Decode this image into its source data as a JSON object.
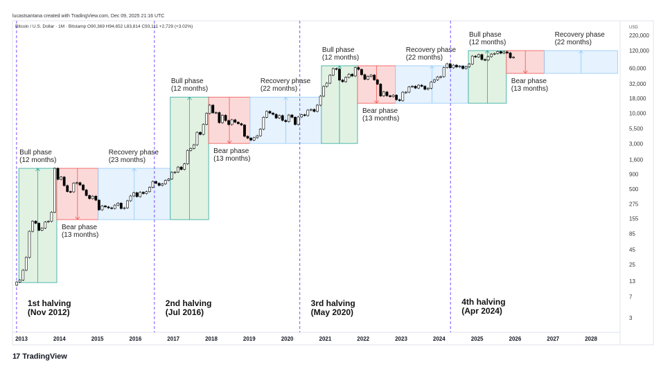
{
  "header": {
    "credit": "lucastsantana created with TradingView.com, Dec 09, 2025 21:16 UTC",
    "symbol_legend": "Bitcoin / U.S. Dollar · 1M · Bitstamp  O90,369  H94,652  L83,814  C93,111  +2,729 (+3.02%)"
  },
  "footer": {
    "logo_text": "TradingView"
  },
  "chart_data": {
    "type": "candlestick",
    "title": "",
    "y_scale": "log",
    "y_unit": "USD",
    "ylim": [
      2,
      300000
    ],
    "xlim": [
      2012.75,
      2028.8
    ],
    "y_ticks": [
      "220,000",
      "120,000",
      "60,000",
      "32,000",
      "18,000",
      "10,000",
      "5,500",
      "3,000",
      "1,600",
      "900",
      "500",
      "275",
      "155",
      "85",
      "45",
      "25",
      "13",
      "7",
      "3"
    ],
    "x_ticks": [
      "2013",
      "2014",
      "2015",
      "2016",
      "2017",
      "2018",
      "2019",
      "2020",
      "2021",
      "2022",
      "2023",
      "2024",
      "2025",
      "2026",
      "2027",
      "2028"
    ],
    "grid": false,
    "series_start_month": "2012-11",
    "first_open": 11,
    "monthly_closes": [
      12.5,
      13.5,
      20,
      33,
      93,
      139,
      128,
      97,
      106,
      135,
      138,
      198,
      1130,
      730,
      800,
      570,
      450,
      445,
      630,
      640,
      585,
      480,
      385,
      340,
      375,
      320,
      218,
      255,
      245,
      236,
      230,
      263,
      284,
      230,
      236,
      312,
      378,
      430,
      368,
      437,
      416,
      448,
      531,
      670,
      624,
      574,
      608,
      700,
      740,
      963,
      970,
      1190,
      1080,
      1350,
      2300,
      2480,
      2870,
      4700,
      4340,
      6450,
      9950,
      13800,
      10200,
      10300,
      6900,
      9250,
      7500,
      6400,
      7730,
      7030,
      6630,
      6300,
      4020,
      3740,
      3460,
      3800,
      4100,
      5320,
      8550,
      10800,
      10100,
      9600,
      8300,
      9150,
      7550,
      7200,
      9350,
      8550,
      6410,
      8650,
      9450,
      9140,
      11350,
      11650,
      10780,
      13800,
      19700,
      28990,
      33100,
      45200,
      58800,
      57700,
      37300,
      35000,
      41500,
      47100,
      43800,
      61300,
      57000,
      46200,
      38500,
      43200,
      45500,
      37700,
      31800,
      19900,
      23300,
      20050,
      19400,
      20500,
      17150,
      16550,
      23100,
      23150,
      28450,
      29250,
      27200,
      30450,
      29200,
      25900,
      26960,
      34650,
      37700,
      42300,
      42600,
      61200,
      71300,
      60700,
      67500,
      62700,
      64600,
      58900,
      63300,
      70200,
      96400,
      93400,
      102400,
      84300,
      82500,
      94200,
      104600,
      107100,
      115700,
      108200,
      114000,
      109500,
      90400,
      93111
    ],
    "colors": {
      "up": "#ffffff",
      "down": "#000000",
      "bull": "#26a69a",
      "bear": "#ef5350",
      "recovery": "#90caf9",
      "halving": "#7c4dff"
    },
    "phases": [
      {
        "kind": "bull",
        "label": "Bull phase",
        "duration": "(12 months)",
        "start": 2012.93,
        "end": 2013.93,
        "low": 12.2,
        "high": 1130,
        "label_pos": "above"
      },
      {
        "kind": "bear",
        "label": "Bear phase",
        "duration": "(13 months)",
        "start": 2013.93,
        "end": 2015.02,
        "low": 148,
        "high": 1130,
        "label_pos": "below"
      },
      {
        "kind": "recovery",
        "label": "Recovery phase",
        "duration": "(23 months)",
        "start": 2015.02,
        "end": 2016.92,
        "low": 148,
        "high": 1130,
        "label_pos": "above"
      },
      {
        "kind": "bull",
        "label": "Bull phase",
        "duration": "(12 months)",
        "start": 2016.92,
        "end": 2017.93,
        "low": 148,
        "high": 19000,
        "label_pos": "above"
      },
      {
        "kind": "bear",
        "label": "Bear phase",
        "duration": "(13 months)",
        "start": 2017.93,
        "end": 2019.02,
        "low": 3030,
        "high": 19000,
        "label_pos": "below"
      },
      {
        "kind": "recovery",
        "label": "Recovery phase",
        "duration": "(22 months)",
        "start": 2019.02,
        "end": 2020.9,
        "low": 3030,
        "high": 19000,
        "label_pos": "above"
      },
      {
        "kind": "bull",
        "label": "Bull phase",
        "duration": "(12 months)",
        "start": 2020.9,
        "end": 2021.85,
        "low": 3030,
        "high": 65800,
        "label_pos": "above"
      },
      {
        "kind": "bear",
        "label": "Bear phase",
        "duration": "(13 months)",
        "start": 2021.85,
        "end": 2022.85,
        "low": 14900,
        "high": 65800,
        "label_pos": "below"
      },
      {
        "kind": "recovery",
        "label": "Recovery phase",
        "duration": "(22 months)",
        "start": 2022.85,
        "end": 2024.77,
        "low": 14900,
        "high": 65800,
        "label_pos": "above"
      },
      {
        "kind": "bull",
        "label": "Bull phase",
        "duration": "(12 months)",
        "start": 2024.77,
        "end": 2025.77,
        "low": 14900,
        "high": 120000,
        "label_pos": "above"
      },
      {
        "kind": "bear",
        "label": "Bear phase",
        "duration": "(13 months)",
        "start": 2025.77,
        "end": 2026.77,
        "low": 48600,
        "high": 120000,
        "label_pos": "below"
      },
      {
        "kind": "recovery",
        "label": "Recovery phase",
        "duration": "(22 months)",
        "start": 2026.77,
        "end": 2028.7,
        "low": 48600,
        "high": 120000,
        "label_pos": "above"
      }
    ],
    "halvings": [
      {
        "name": "1st halving",
        "date": "(Nov 2012)",
        "t": 2012.87
      },
      {
        "name": "2nd halving",
        "date": "(Jul 2016)",
        "t": 2016.5
      },
      {
        "name": "3rd halving",
        "date": "(May 2020)",
        "t": 2020.33
      },
      {
        "name": "4th halving",
        "date": "(Apr 2024)",
        "t": 2024.3
      }
    ]
  }
}
